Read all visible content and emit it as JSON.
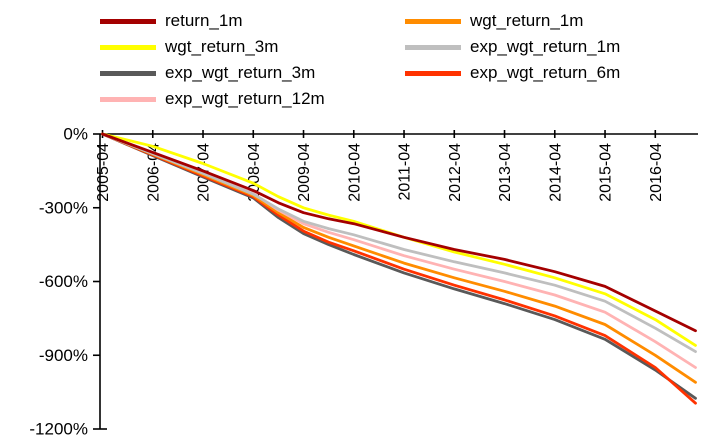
{
  "chart_data": {
    "type": "line",
    "title": "",
    "xlabel": "",
    "ylabel": "",
    "grid": false,
    "legend_position": "top",
    "xlim": [
      2005.2,
      2017.1
    ],
    "ylim": [
      -1200,
      0
    ],
    "y_ticks": [
      "0%",
      "-300%",
      "-600%",
      "-900%",
      "-1200%"
    ],
    "y_tick_values": [
      0,
      -300,
      -600,
      -900,
      -1200
    ],
    "x_ticks": [
      "2005-04",
      "2006-04",
      "2007-04",
      "2008-04",
      "2009-04",
      "2010-04",
      "2011-04",
      "2012-04",
      "2013-04",
      "2014-04",
      "2015-04",
      "2016-04"
    ],
    "x_tick_positions": [
      2005.25,
      2006.25,
      2007.25,
      2008.25,
      2009.25,
      2010.25,
      2011.25,
      2012.25,
      2013.25,
      2014.25,
      2015.25,
      2016.25
    ],
    "x": [
      2005.25,
      2006.25,
      2007.25,
      2008.25,
      2008.75,
      2009.25,
      2009.75,
      2010.25,
      2011.25,
      2012.25,
      2013.25,
      2014.25,
      2015.25,
      2016.25,
      2017.05
    ],
    "series": [
      {
        "name": "return_1m",
        "color": "#a40000",
        "values": [
          0,
          -75,
          -150,
          -230,
          -280,
          -320,
          -345,
          -365,
          -420,
          -470,
          -510,
          -560,
          -620,
          -720,
          -800
        ]
      },
      {
        "name": "wgt_return_1m",
        "color": "#ff8c00",
        "values": [
          0,
          -82,
          -165,
          -250,
          -320,
          -380,
          -420,
          -455,
          -525,
          -585,
          -640,
          -700,
          -775,
          -900,
          -1010
        ]
      },
      {
        "name": "wgt_return_3m",
        "color": "#ffff00",
        "values": [
          0,
          -50,
          -120,
          -200,
          -255,
          -300,
          -330,
          -355,
          -420,
          -480,
          -530,
          -585,
          -650,
          -755,
          -860
        ]
      },
      {
        "name": "exp_wgt_return_1m",
        "color": "#bfbfbf",
        "values": [
          0,
          -80,
          -160,
          -245,
          -305,
          -355,
          -385,
          -410,
          -470,
          -520,
          -565,
          -615,
          -680,
          -790,
          -885
        ]
      },
      {
        "name": "exp_wgt_return_3m",
        "color": "#595959",
        "values": [
          0,
          -88,
          -175,
          -260,
          -340,
          -405,
          -450,
          -490,
          -565,
          -630,
          -690,
          -755,
          -835,
          -960,
          -1075
        ]
      },
      {
        "name": "exp_wgt_return_6m",
        "color": "#ff3200",
        "values": [
          0,
          -85,
          -170,
          -255,
          -330,
          -395,
          -440,
          -475,
          -550,
          -615,
          -675,
          -740,
          -820,
          -950,
          -1095
        ]
      },
      {
        "name": "exp_wgt_return_12m",
        "color": "#ffb3b3",
        "values": [
          0,
          -78,
          -158,
          -242,
          -310,
          -365,
          -400,
          -430,
          -495,
          -550,
          -600,
          -655,
          -725,
          -845,
          -950
        ]
      }
    ],
    "axis_color": "#000000",
    "tick_label_color": "#000000"
  }
}
